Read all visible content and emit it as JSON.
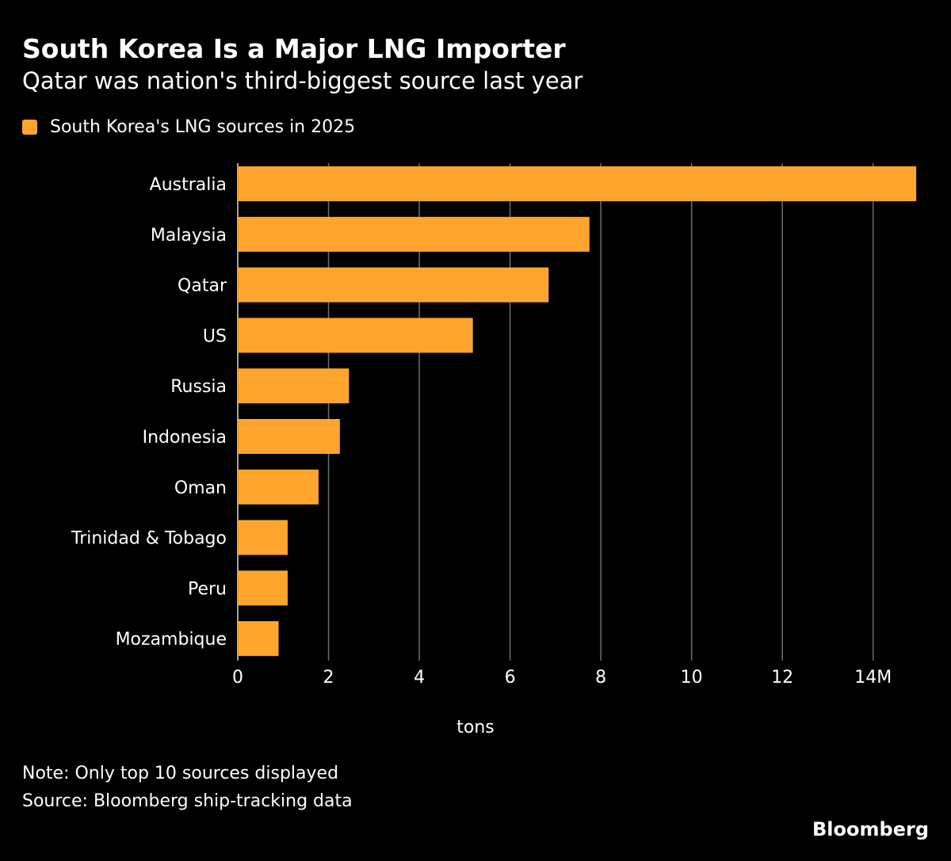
{
  "header": {
    "title": "South Korea Is a Major LNG Importer",
    "subtitle": "Qatar was nation's third-biggest source last year"
  },
  "footer": {
    "note": "Note: Only top 10 sources displayed",
    "source": "Source: Bloomberg ship-tracking data",
    "brand": "Bloomberg"
  },
  "colors": {
    "bar": "#FFA52E",
    "gridline": "#6E6E6E",
    "background": "#000000",
    "text": "#FFFFFF"
  },
  "chart_data": {
    "type": "bar",
    "orientation": "horizontal",
    "categories": [
      "Australia",
      "Malaysia",
      "Qatar",
      "US",
      "Russia",
      "Indonesia",
      "Oman",
      "Trinidad & Tobago",
      "Peru",
      "Mozambique"
    ],
    "series": [
      {
        "name": "South Korea's LNG sources in 2025",
        "values": [
          14.95,
          7.75,
          6.85,
          5.18,
          2.45,
          2.25,
          1.78,
          1.1,
          1.1,
          0.9
        ]
      }
    ],
    "xlabel": "tons",
    "xlim": [
      0,
      15
    ],
    "xticks": [
      0,
      2,
      4,
      6,
      8,
      10,
      12,
      14
    ],
    "xtick_labels": [
      "0",
      "2",
      "4",
      "6",
      "8",
      "10",
      "12",
      "14M"
    ],
    "grid": true,
    "legend_position": "top-left"
  }
}
